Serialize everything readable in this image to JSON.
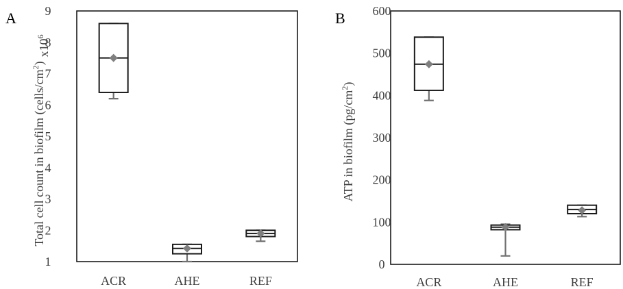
{
  "colors": {
    "box": "#1a1a1a",
    "whisker": "#707070",
    "mean_marker": "#7f7f7f",
    "axis": "#1a1a1a",
    "text": "#404040"
  },
  "chart_data": [
    {
      "type": "box",
      "panel_label": "A",
      "ylabel_main": "Total cell count in biofilm (cells/cm",
      "ylabel_unit_sup": "2",
      "ylabel_close": ")",
      "ylabel_multiplier": "x10",
      "ylabel_multiplier_sup": "6",
      "ylim": [
        1,
        9
      ],
      "yticks": [
        1,
        2,
        3,
        4,
        5,
        6,
        7,
        8,
        9
      ],
      "categories": [
        "ACR",
        "AHE",
        "REF"
      ],
      "boxes": [
        {
          "category": "ACR",
          "min": 6.2,
          "q1": 6.4,
          "median": 7.5,
          "q3": 8.6,
          "max": 8.6,
          "mean": 7.5
        },
        {
          "category": "AHE",
          "min": 1.0,
          "q1": 1.25,
          "median": 1.42,
          "q3": 1.55,
          "max": 1.55,
          "mean": 1.42
        },
        {
          "category": "REF",
          "min": 1.65,
          "q1": 1.8,
          "median": 1.9,
          "q3": 2.0,
          "max": 2.0,
          "mean": 1.9
        }
      ]
    },
    {
      "type": "box",
      "panel_label": "B",
      "ylabel_main": "ATP in biofilm (pg/cm",
      "ylabel_unit_sup": "2",
      "ylabel_close": ")",
      "ylabel_multiplier": "",
      "ylabel_multiplier_sup": "",
      "ylim": [
        0,
        600
      ],
      "yticks": [
        0,
        100,
        200,
        300,
        400,
        500,
        600
      ],
      "categories": [
        "ACR",
        "AHE",
        "REF"
      ],
      "boxes": [
        {
          "category": "ACR",
          "min": 388,
          "q1": 412,
          "median": 474,
          "q3": 538,
          "max": 538,
          "mean": 474
        },
        {
          "category": "AHE",
          "min": 20,
          "q1": 82,
          "median": 88,
          "q3": 93,
          "max": 95,
          "mean": 88
        },
        {
          "category": "REF",
          "min": 113,
          "q1": 120,
          "median": 130,
          "q3": 140,
          "max": 140,
          "mean": 128
        }
      ]
    }
  ]
}
